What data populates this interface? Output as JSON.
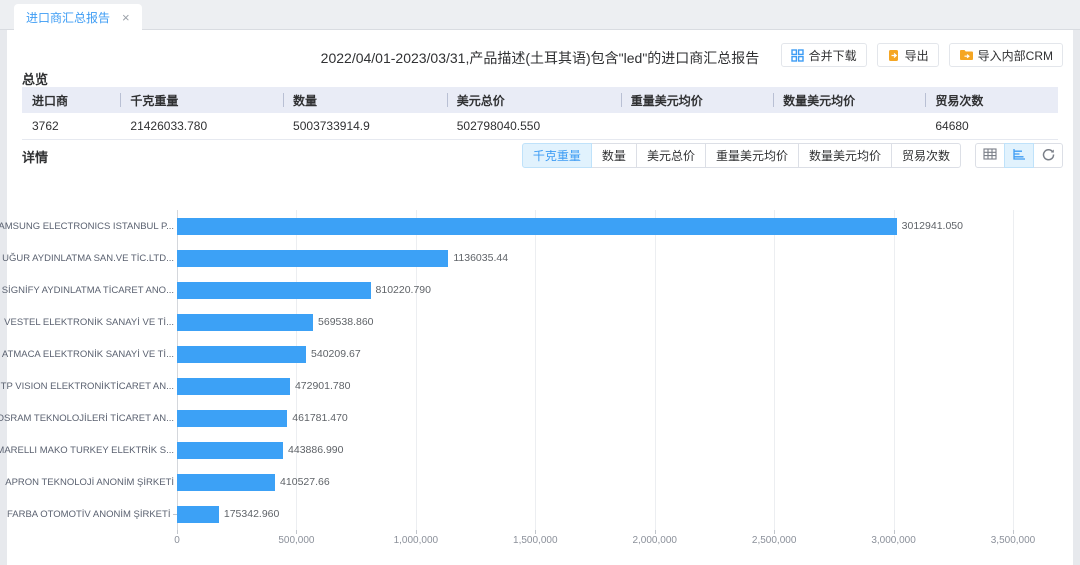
{
  "tab": {
    "label": "进口商汇总报告",
    "close_glyph": "×"
  },
  "header": {
    "title": "2022/04/01-2023/03/31,产品描述(土耳其语)包含\"led\"的进口商汇总报告",
    "buttons": [
      {
        "label": "合并下载",
        "icon": "merge-download-icon",
        "icon_color": "#3d9cf4"
      },
      {
        "label": "导出",
        "icon": "export-icon",
        "icon_color": "#f5a623"
      },
      {
        "label": "导入内部CRM",
        "icon": "import-crm-icon",
        "icon_color": "#f5a623"
      }
    ]
  },
  "overview": {
    "section_title": "总览",
    "columns": [
      "进口商",
      "千克重量",
      "数量",
      "美元总价",
      "重量美元均价",
      "数量美元均价",
      "贸易次数"
    ],
    "row": [
      "3762",
      "21426033.780",
      "5003733914.9",
      "502798040.550",
      "",
      "",
      "64680"
    ]
  },
  "detail": {
    "section_title": "详情",
    "metric_tabs": [
      {
        "label": "千克重量",
        "active": true
      },
      {
        "label": "数量",
        "active": false
      },
      {
        "label": "美元总价",
        "active": false
      },
      {
        "label": "重量美元均价",
        "active": false
      },
      {
        "label": "数量美元均价",
        "active": false
      },
      {
        "label": "贸易次数",
        "active": false
      }
    ],
    "view_buttons": [
      {
        "name": "table-view-icon",
        "active": false
      },
      {
        "name": "bar-chart-view-icon",
        "active": true
      },
      {
        "name": "refresh-icon",
        "active": false
      }
    ]
  },
  "chart_data": {
    "type": "bar",
    "orientation": "horizontal",
    "title": "",
    "xlabel": "",
    "ylabel": "",
    "xlim": [
      0,
      3500000
    ],
    "grid": true,
    "bar_color": "#3ca1f6",
    "categories": [
      "SAMSUNG ELECTRONICS ISTANBUL P...",
      "UĞUR AYDINLATMA SAN.VE TİC.LTD...",
      "SİGNİFY AYDINLATMA TİCARET ANO...",
      "VESTEL ELEKTRONİK SANAYİ VE Tİ...",
      "ATMACA ELEKTRONİK SANAYİ VE Tİ...",
      "TP VISION ELEKTRONİKTİCARET AN...",
      "OSRAM TEKNOLOJİLERİ TİCARET AN...",
      "MARELLI MAKO TURKEY ELEKTRİK S...",
      "APRON TEKNOLOJİ ANONİM ŞİRKETİ",
      "FARBA OTOMOTİV ANONİM ŞİRKETİ"
    ],
    "values": [
      3012941.05,
      1136035.44,
      810220.79,
      569538.86,
      540209.67,
      472901.78,
      461781.47,
      443886.99,
      410527.66,
      175342.96
    ],
    "value_labels": [
      "3012941.050",
      "1136035.44",
      "810220.790",
      "569538.860",
      "540209.67",
      "472901.780",
      "461781.470",
      "443886.990",
      "410527.66",
      "175342.960"
    ],
    "x_ticks": [
      "0",
      "500,000",
      "1,000,000",
      "1,500,000",
      "2,000,000",
      "2,500,000",
      "3,000,000",
      "3,500,000"
    ]
  },
  "colors": {
    "accent_blue": "#3d9cf4",
    "bar_blue": "#3ca1f6",
    "table_header_bg": "#e9ecf6",
    "active_tab_bg": "#e1f2fd",
    "orange_icon": "#f5a623"
  }
}
